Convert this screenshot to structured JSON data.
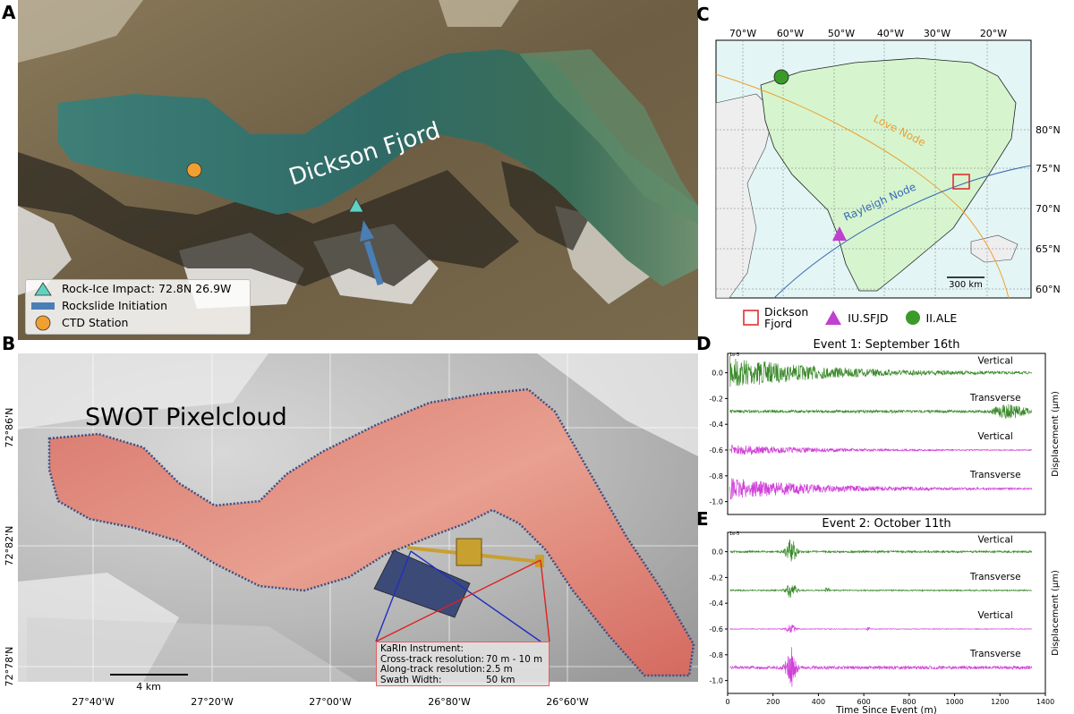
{
  "panels": {
    "a": {
      "letter": "A",
      "fjord_label": "Dickson Fjord",
      "legend": [
        {
          "label": "Rock-Ice Impact: 72.8N 26.9W",
          "symbol": "triangle",
          "color": "#5fd3c0"
        },
        {
          "label": "Rockslide Initiation",
          "symbol": "bar",
          "color": "#4a7fb5"
        },
        {
          "label": "CTD Station",
          "symbol": "circle",
          "color": "#f0a030"
        }
      ]
    },
    "b": {
      "letter": "B",
      "title": "SWOT Pixelcloud",
      "x_ticks": [
        "27°40'W",
        "27°20'W",
        "27°00'W",
        "26°80'W",
        "26°60'W"
      ],
      "y_ticks": [
        "72°86'N",
        "72°82'N",
        "72°78'N"
      ],
      "scalebar": "4 km",
      "karin": {
        "title": "KaRIn Instrument:",
        "rows": [
          {
            "k": "Cross-track resolution:",
            "v": "70 m - 10 m"
          },
          {
            "k": "Along-track resolution:",
            "v": "2.5 m"
          },
          {
            "k": "Swath Width:",
            "v": "50 km"
          }
        ]
      }
    },
    "c": {
      "letter": "C",
      "x_ticks": [
        "70°W",
        "60°W",
        "50°W",
        "40°W",
        "30°W",
        "20°W"
      ],
      "y_ticks": [
        "80°N",
        "75°N",
        "70°N",
        "65°N",
        "60°N"
      ],
      "love_label": "Love Node",
      "rayleigh_label": "Rayleigh Node",
      "scalebar": "300 km",
      "legend": [
        {
          "label_line1": "Dickson",
          "label_line2": "Fjord",
          "symbol": "square",
          "color": "#e03030"
        },
        {
          "label_line1": "IU.SFJD",
          "label_line2": "",
          "symbol": "triangle",
          "color": "#c040d0"
        },
        {
          "label_line1": "II.ALE",
          "label_line2": "",
          "symbol": "circle",
          "color": "#3a9a2a"
        }
      ]
    },
    "d": {
      "letter": "D"
    },
    "e": {
      "letter": "E"
    }
  },
  "chart_data": [
    {
      "type": "line",
      "title": "Event 1: September 16th",
      "ylabel": "Displacement (μm)",
      "y_scale_note": "1e-5",
      "ylim": [
        -1.1,
        0.15
      ],
      "y_ticks": [
        0.0,
        -0.2,
        -0.4,
        -0.6,
        -0.8,
        -1.0
      ],
      "x_range": [
        0,
        1400
      ],
      "series": [
        {
          "name": "Vertical",
          "offset": 0.0,
          "color": "#3a8a2a",
          "amplitude": 0.12
        },
        {
          "name": "Transverse",
          "offset": -0.3,
          "color": "#3a8a2a",
          "amplitude": 0.03
        },
        {
          "name": "Vertical",
          "offset": -0.6,
          "color": "#d040d8",
          "amplitude": 0.04
        },
        {
          "name": "Transverse",
          "offset": -0.9,
          "color": "#d040d8",
          "amplitude": 0.08
        }
      ]
    },
    {
      "type": "line",
      "title": "Event 2: October 11th",
      "xlabel": "Time Since Event (m)",
      "ylabel": "Displacement (μm)",
      "y_scale_note": "1e-5",
      "ylim": [
        -1.1,
        0.15
      ],
      "y_ticks": [
        0.0,
        -0.2,
        -0.4,
        -0.6,
        -0.8,
        -1.0
      ],
      "x_ticks": [
        0,
        200,
        400,
        600,
        800,
        1000,
        1200,
        1400
      ],
      "x_range": [
        0,
        1400
      ],
      "series": [
        {
          "name": "Vertical",
          "offset": 0.0,
          "color": "#3a8a2a",
          "amplitude": 0.03
        },
        {
          "name": "Transverse",
          "offset": -0.3,
          "color": "#3a8a2a",
          "amplitude": 0.02
        },
        {
          "name": "Vertical",
          "offset": -0.6,
          "color": "#d040d8",
          "amplitude": 0.01
        },
        {
          "name": "Transverse",
          "offset": -0.9,
          "color": "#d040d8",
          "amplitude": 0.05
        }
      ]
    }
  ]
}
